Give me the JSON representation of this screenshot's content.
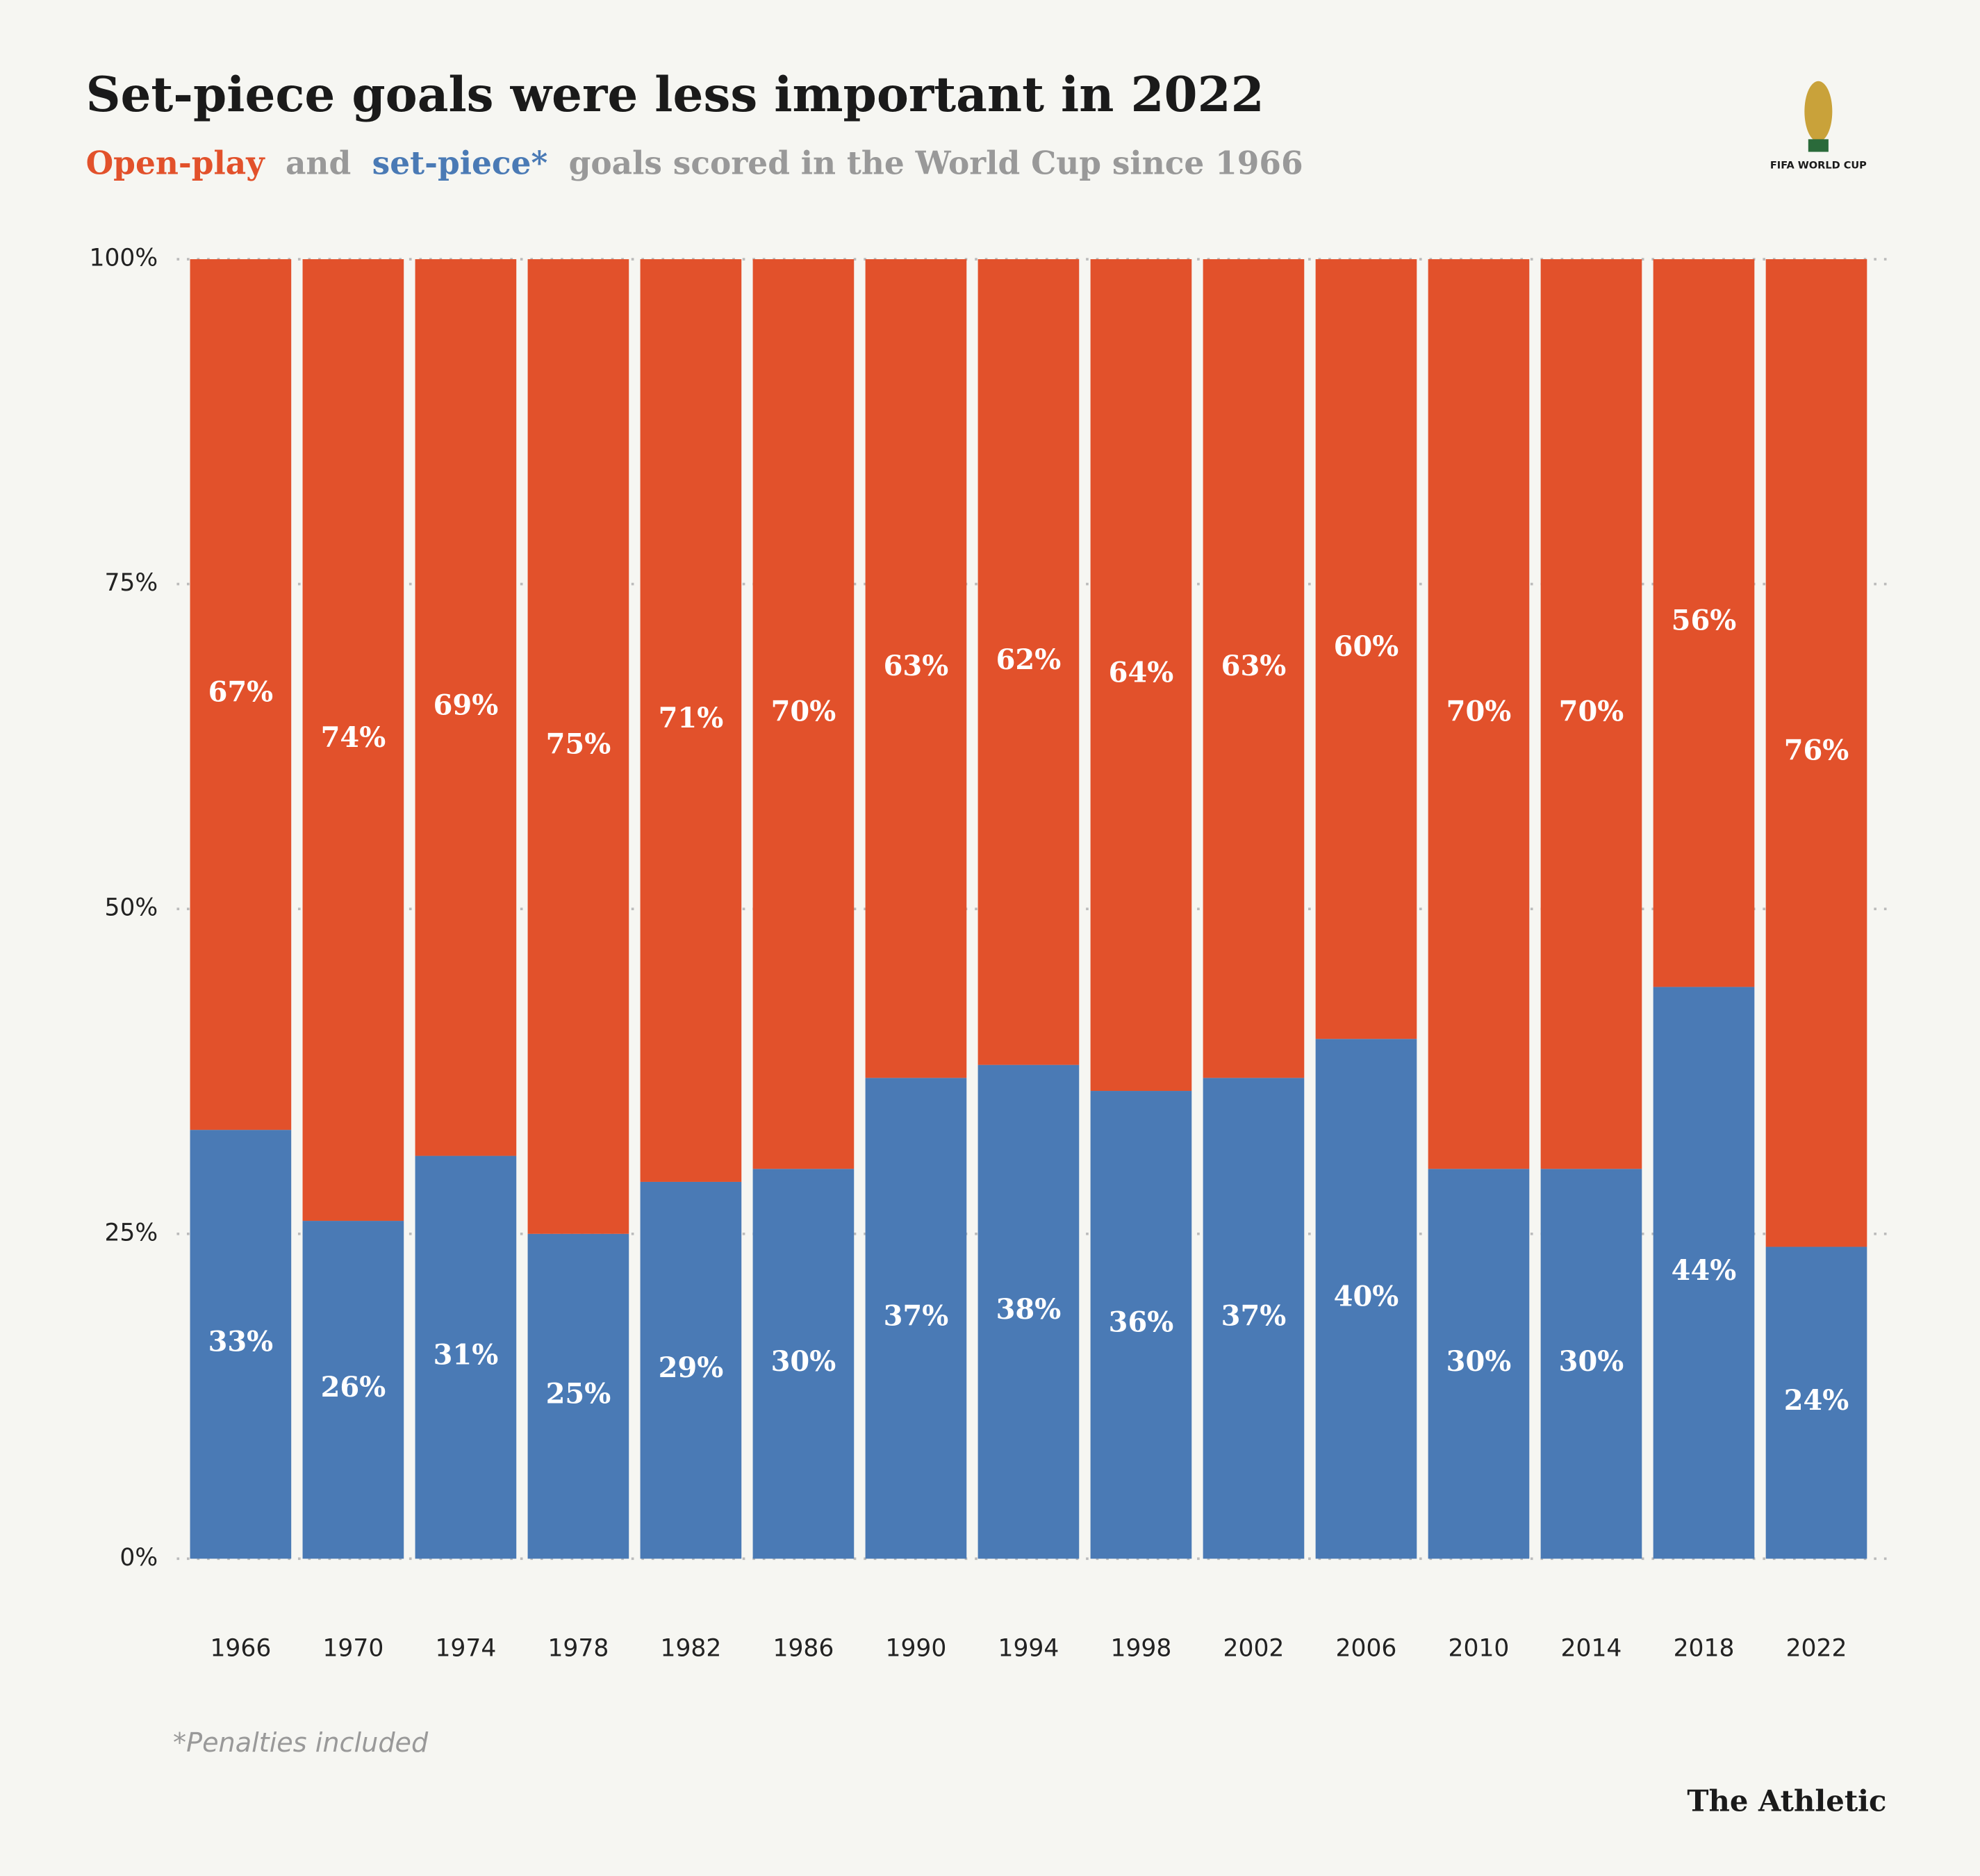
{
  "chart_data": {
    "type": "stacked-bar",
    "title": "Set-piece goals were less important in 2022",
    "subtitle": [
      "and",
      "goals scored in the World Cup since 1966"
    ],
    "categories": [
      "1966",
      "1970",
      "1974",
      "1978",
      "1982",
      "1986",
      "1990",
      "1994",
      "1998",
      "2002",
      "2006",
      "2010",
      "2014",
      "2018",
      "2022"
    ],
    "series": [
      {
        "name": "Open-play",
        "color": "#e2512b",
        "values": [
          67,
          74,
          69,
          75,
          71,
          70,
          63,
          62,
          64,
          63,
          60,
          70,
          70,
          56,
          76
        ],
        "value_labels": [
          "67%",
          "74%",
          "69%",
          "75%",
          "71%",
          "70%",
          "63%",
          "62%",
          "64%",
          "63%",
          "60%",
          "70%",
          "70%",
          "56%",
          "76%"
        ]
      },
      {
        "name": "set-piece*",
        "color": "#4a7ab5",
        "values": [
          33,
          26,
          31,
          25,
          29,
          30,
          37,
          38,
          36,
          37,
          40,
          30,
          30,
          44,
          24
        ],
        "value_labels": [
          "33%",
          "26%",
          "31%",
          "25%",
          "29%",
          "30%",
          "37%",
          "38%",
          "36%",
          "37%",
          "40%",
          "30%",
          "30%",
          "44%",
          "24%"
        ]
      }
    ],
    "ylim": [
      0,
      100
    ],
    "yticks": [
      {
        "value": 0,
        "label": "0%"
      },
      {
        "value": 25,
        "label": "25%"
      },
      {
        "value": 50,
        "label": "50%"
      },
      {
        "value": 75,
        "label": "75%"
      },
      {
        "value": 100,
        "label": "100%"
      }
    ],
    "grid": true,
    "footnote": "*Penalties included",
    "source": "The Athletic",
    "logo": "FIFA WORLD CUP"
  }
}
